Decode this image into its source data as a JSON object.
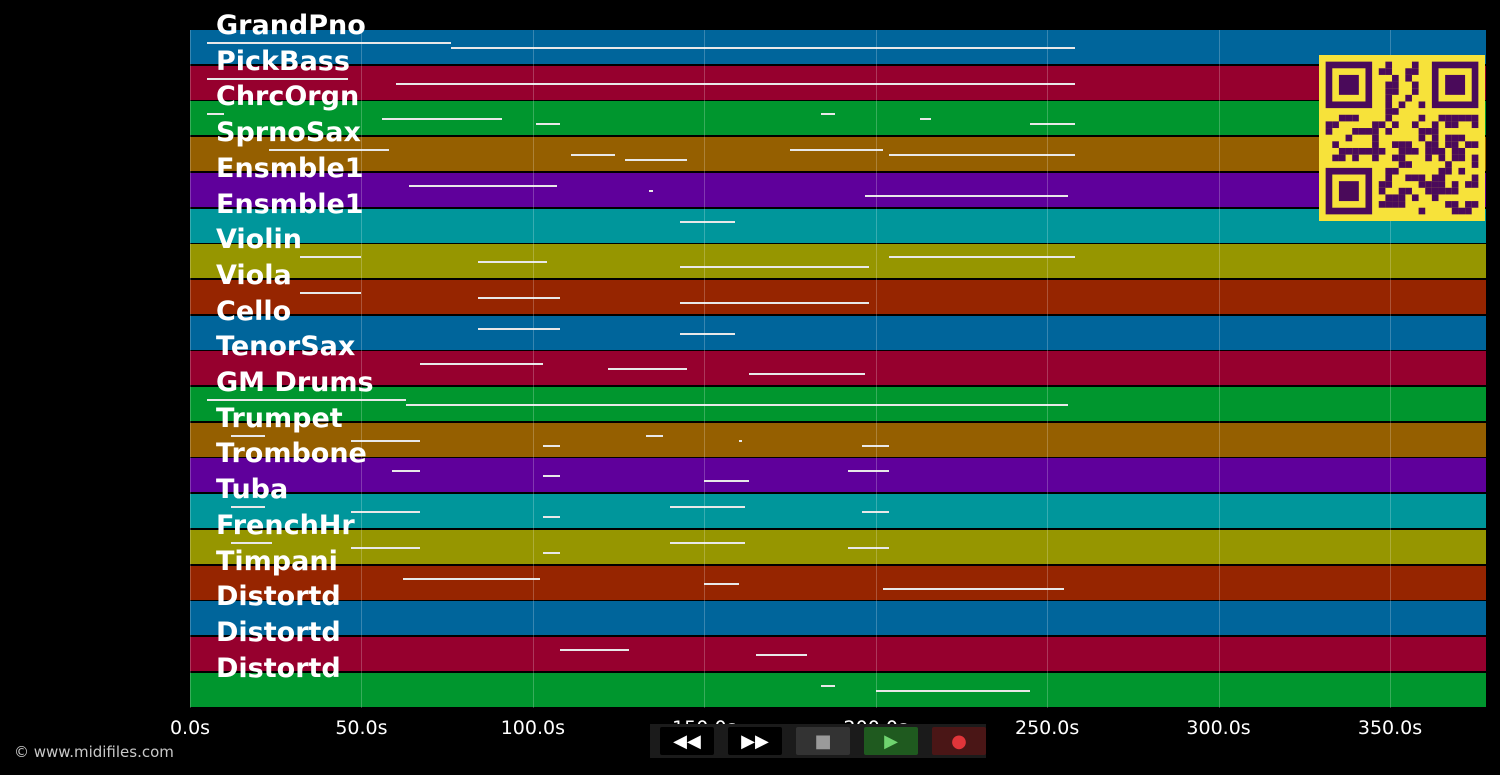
{
  "tracks": [
    {
      "name": "GrandPno",
      "color": "#00659b"
    },
    {
      "name": "PickBass",
      "color": "#96002e"
    },
    {
      "name": "ChrcOrgn",
      "color": "#00962e"
    },
    {
      "name": "SprnoSax",
      "color": "#955f00"
    },
    {
      "name": "Ensmble1",
      "color": "#5f009b"
    },
    {
      "name": "Ensmble1",
      "color": "#00969b"
    },
    {
      "name": "Violin",
      "color": "#969600"
    },
    {
      "name": "Viola",
      "color": "#962500"
    },
    {
      "name": "Cello",
      "color": "#00659b"
    },
    {
      "name": "TenorSax",
      "color": "#96002e"
    },
    {
      "name": "GM Drums",
      "color": "#00962e"
    },
    {
      "name": "Trumpet",
      "color": "#955f00"
    },
    {
      "name": "Trombone",
      "color": "#5f009b"
    },
    {
      "name": "Tuba",
      "color": "#00969b"
    },
    {
      "name": "FrenchHr",
      "color": "#969600"
    },
    {
      "name": "Timpani",
      "color": "#962500"
    },
    {
      "name": "Distortd",
      "color": "#00659b"
    },
    {
      "name": "Distortd",
      "color": "#96002e"
    },
    {
      "name": "Distortd",
      "color": "#00962e"
    }
  ],
  "time_axis": {
    "min": 0,
    "max": 378,
    "tick_values": [
      0,
      50,
      100,
      150,
      200,
      250,
      300,
      350
    ],
    "tick_labels": [
      "0.0s",
      "50.0s",
      "100.0s",
      "150.0s",
      "200.0s",
      "250.0s",
      "300.0s",
      "350.0s"
    ]
  },
  "credit": "© www.midifiles.com",
  "controls": [
    {
      "name": "rewind-button",
      "icon": "rewind-icon",
      "glyph": "◀◀",
      "color": "#ffffff",
      "bg": "#000000"
    },
    {
      "name": "fast-forward-button",
      "icon": "fast-forward-icon",
      "glyph": "▶▶",
      "color": "#ffffff",
      "bg": "#000000"
    },
    {
      "name": "stop-button",
      "icon": "stop-icon",
      "glyph": "■",
      "color": "#9a9a9a",
      "bg": "#333333"
    },
    {
      "name": "play-button",
      "icon": "play-icon",
      "glyph": "▶",
      "color": "#6fd46f",
      "bg": "#1f5a1f"
    },
    {
      "name": "record-button",
      "icon": "record-icon",
      "glyph": "●",
      "color": "#e0353a",
      "bg": "#4a1616"
    }
  ],
  "qr_code": {
    "icon": "qr-code-icon",
    "foreground": "#4a0a5a",
    "background": "#f7e23a"
  },
  "note_segments": [
    [
      [
        5,
        76
      ],
      [
        76,
        258
      ]
    ],
    [
      [
        5,
        46
      ],
      [
        60,
        258
      ]
    ],
    [
      [
        5,
        10
      ],
      [
        56,
        91
      ],
      [
        101,
        108
      ],
      [
        184,
        188
      ],
      [
        213,
        216
      ],
      [
        245,
        258
      ]
    ],
    [
      [
        23,
        58
      ],
      [
        111,
        124
      ],
      [
        127,
        145
      ],
      [
        175,
        202
      ],
      [
        204,
        258
      ]
    ],
    [
      [
        64,
        107
      ],
      [
        134,
        135
      ],
      [
        197,
        256
      ]
    ],
    [
      [
        143,
        159
      ]
    ],
    [
      [
        32,
        50
      ],
      [
        84,
        104
      ],
      [
        143,
        198
      ],
      [
        204,
        258
      ]
    ],
    [
      [
        32,
        50
      ],
      [
        84,
        108
      ],
      [
        143,
        198
      ]
    ],
    [
      [
        84,
        108
      ],
      [
        143,
        159
      ]
    ],
    [
      [
        67,
        103
      ],
      [
        122,
        145
      ],
      [
        163,
        197
      ]
    ],
    [
      [
        5,
        63
      ],
      [
        63,
        256
      ]
    ],
    [
      [
        12,
        22
      ],
      [
        47,
        67
      ],
      [
        103,
        108
      ],
      [
        133,
        138
      ],
      [
        160,
        161
      ],
      [
        196,
        204
      ]
    ],
    [
      [
        59,
        67
      ],
      [
        103,
        108
      ],
      [
        150,
        163
      ],
      [
        192,
        204
      ]
    ],
    [
      [
        12,
        22
      ],
      [
        47,
        67
      ],
      [
        103,
        108
      ],
      [
        140,
        162
      ],
      [
        196,
        204
      ]
    ],
    [
      [
        12,
        24
      ],
      [
        47,
        67
      ],
      [
        103,
        108
      ],
      [
        140,
        162
      ],
      [
        192,
        204
      ]
    ],
    [
      [
        62,
        102
      ],
      [
        150,
        160
      ],
      [
        202,
        255
      ]
    ],
    [],
    [
      [
        108,
        128
      ],
      [
        165,
        180
      ]
    ],
    [
      [
        184,
        188
      ],
      [
        200,
        245
      ]
    ]
  ]
}
